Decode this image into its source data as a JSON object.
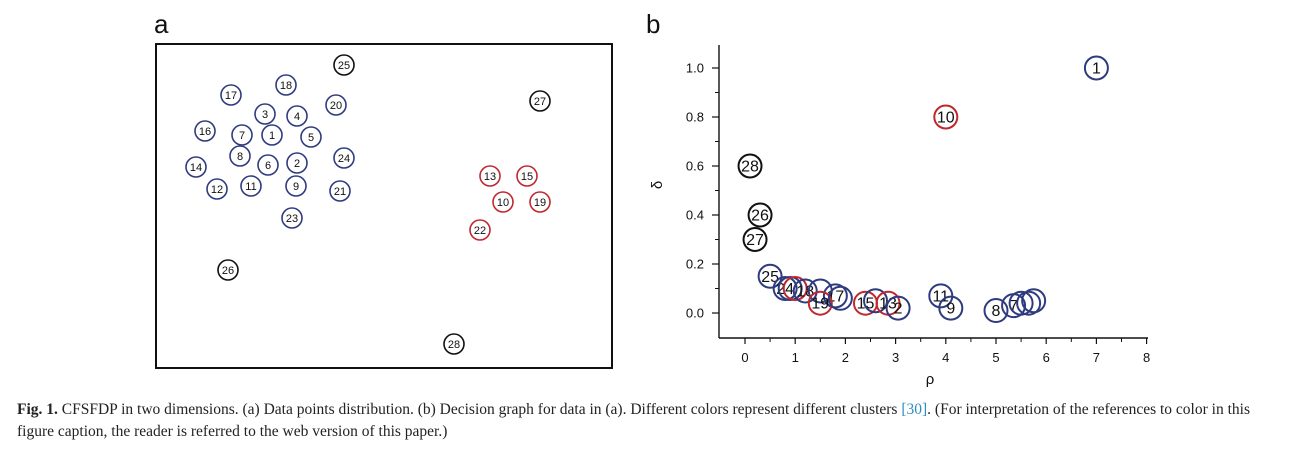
{
  "panels": {
    "a_label": "a",
    "b_label": "b"
  },
  "colors": {
    "blue": "#2f3b7f",
    "red": "#c0282d",
    "black": "#111111"
  },
  "scatter_points": [
    {
      "id": "25",
      "cluster": "black"
    },
    {
      "id": "18",
      "cluster": "blue"
    },
    {
      "id": "17",
      "cluster": "blue"
    },
    {
      "id": "20",
      "cluster": "blue"
    },
    {
      "id": "3",
      "cluster": "blue"
    },
    {
      "id": "4",
      "cluster": "blue"
    },
    {
      "id": "16",
      "cluster": "blue"
    },
    {
      "id": "7",
      "cluster": "blue"
    },
    {
      "id": "1",
      "cluster": "blue"
    },
    {
      "id": "5",
      "cluster": "blue"
    },
    {
      "id": "8",
      "cluster": "blue"
    },
    {
      "id": "14",
      "cluster": "blue"
    },
    {
      "id": "6",
      "cluster": "blue"
    },
    {
      "id": "2",
      "cluster": "blue"
    },
    {
      "id": "24",
      "cluster": "blue"
    },
    {
      "id": "12",
      "cluster": "blue"
    },
    {
      "id": "11",
      "cluster": "blue"
    },
    {
      "id": "9",
      "cluster": "blue"
    },
    {
      "id": "21",
      "cluster": "blue"
    },
    {
      "id": "23",
      "cluster": "blue"
    },
    {
      "id": "26",
      "cluster": "black"
    },
    {
      "id": "27",
      "cluster": "black"
    },
    {
      "id": "13",
      "cluster": "red"
    },
    {
      "id": "15",
      "cluster": "red"
    },
    {
      "id": "10",
      "cluster": "red"
    },
    {
      "id": "19",
      "cluster": "red"
    },
    {
      "id": "22",
      "cluster": "red"
    },
    {
      "id": "28",
      "cluster": "black"
    }
  ],
  "chart_data": {
    "type": "scatter",
    "xlabel": "ρ",
    "ylabel": "δ",
    "xlim": [
      -0.4,
      8
    ],
    "ylim": [
      -0.1,
      1.1
    ],
    "x_ticks": [
      "0",
      "1",
      "2",
      "3",
      "4",
      "5",
      "6",
      "7",
      "8"
    ],
    "y_ticks": [
      "0.0",
      "0.2",
      "0.4",
      "0.6",
      "0.8",
      "1.0"
    ],
    "points": [
      {
        "label": "1",
        "x": 7.0,
        "y": 1.0,
        "cluster": "blue"
      },
      {
        "label": "10",
        "x": 4.0,
        "y": 0.8,
        "cluster": "red"
      },
      {
        "label": "28",
        "x": 0.1,
        "y": 0.6,
        "cluster": "black"
      },
      {
        "label": "26",
        "x": 0.3,
        "y": 0.4,
        "cluster": "black"
      },
      {
        "label": "27",
        "x": 0.2,
        "y": 0.3,
        "cluster": "black"
      },
      {
        "label": "25",
        "x": 0.5,
        "y": 0.15,
        "cluster": "blue"
      },
      {
        "label": "24",
        "x": 0.8,
        "y": 0.1,
        "cluster": "blue"
      },
      {
        "label": "",
        "x": 0.9,
        "y": 0.1,
        "cluster": "blue"
      },
      {
        "label": "",
        "x": 1.0,
        "y": 0.1,
        "cluster": "red"
      },
      {
        "label": "18",
        "x": 1.2,
        "y": 0.09,
        "cluster": "blue"
      },
      {
        "label": "",
        "x": 1.5,
        "y": 0.09,
        "cluster": "blue"
      },
      {
        "label": "17",
        "x": 1.8,
        "y": 0.07,
        "cluster": "blue"
      },
      {
        "label": "19",
        "x": 1.5,
        "y": 0.04,
        "cluster": "red"
      },
      {
        "label": "",
        "x": 1.9,
        "y": 0.06,
        "cluster": "blue"
      },
      {
        "label": "15",
        "x": 2.4,
        "y": 0.04,
        "cluster": "red"
      },
      {
        "label": "",
        "x": 2.6,
        "y": 0.05,
        "cluster": "blue"
      },
      {
        "label": "13",
        "x": 2.85,
        "y": 0.04,
        "cluster": "red"
      },
      {
        "label": "2",
        "x": 3.05,
        "y": 0.02,
        "cluster": "blue"
      },
      {
        "label": "11",
        "x": 3.9,
        "y": 0.07,
        "cluster": "blue"
      },
      {
        "label": "9",
        "x": 4.1,
        "y": 0.02,
        "cluster": "blue"
      },
      {
        "label": "8",
        "x": 5.0,
        "y": 0.01,
        "cluster": "blue"
      },
      {
        "label": "7",
        "x": 5.35,
        "y": 0.03,
        "cluster": "blue"
      },
      {
        "label": "",
        "x": 5.5,
        "y": 0.04,
        "cluster": "blue"
      },
      {
        "label": "",
        "x": 5.65,
        "y": 0.04,
        "cluster": "blue"
      },
      {
        "label": "",
        "x": 5.75,
        "y": 0.05,
        "cluster": "blue"
      }
    ]
  },
  "caption": {
    "label": "Fig. 1.",
    "text_before_ref": " CFSFDP in two dimensions. (a) Data points distribution. (b) Decision graph for data in (a). Different colors represent different clusters ",
    "ref": "[30]",
    "text_after_ref": ". (For interpretation of the references to color in this figure caption, the reader is referred to the web version of this paper.)"
  }
}
